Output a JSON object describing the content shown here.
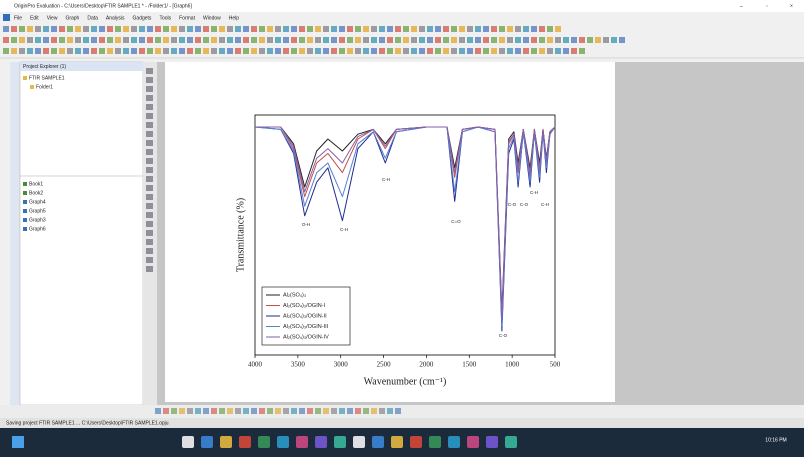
{
  "window": {
    "title": "OriginPro Evaluation - C:\\Users\\Desktop\\FTIR SAMPLE1 * - /Folder1/ - [Graph6]",
    "menu": [
      "File",
      "Edit",
      "View",
      "Graph",
      "Data",
      "Analysis",
      "Gadgets",
      "Tools",
      "Format",
      "Window",
      "Help"
    ]
  },
  "project_explorer": {
    "title": "Project Explorer (1)",
    "folders": [
      "FTIR SAMPLE1",
      "Folder1"
    ],
    "items": [
      "Book1",
      "Book2",
      "Graph4",
      "Graph5",
      "Graph3",
      "Graph6"
    ]
  },
  "graph": {
    "type": "line",
    "x_label": "Wavenumber (cm⁻¹)",
    "y_label": "Transmittance (%)",
    "xlim": [
      4000,
      500
    ],
    "ylim": [
      0,
      100
    ],
    "xticks": [
      4000,
      3500,
      3000,
      2500,
      2000,
      1500,
      1000,
      500
    ],
    "x": [
      4000,
      3700,
      3550,
      3420,
      3280,
      3150,
      2980,
      2800,
      2620,
      2480,
      2350,
      2000,
      1760,
      1670,
      1580,
      1400,
      1200,
      1120,
      1040,
      980,
      930,
      870,
      790,
      740,
      680,
      640,
      600,
      560,
      500
    ],
    "series": [
      {
        "name": "Al₂(SO₄)₃",
        "color": "#222222",
        "values": [
          95,
          95,
          88,
          70,
          85,
          90,
          85,
          92,
          94,
          88,
          94,
          95,
          95,
          78,
          94,
          95,
          94,
          18,
          90,
          93,
          80,
          94,
          78,
          94,
          80,
          94,
          82,
          93,
          95
        ]
      },
      {
        "name": "Al₂(SO₄)₃/OGIN-I",
        "color": "#c0504d",
        "values": [
          95,
          95,
          86,
          66,
          80,
          84,
          76,
          90,
          94,
          86,
          94,
          95,
          95,
          74,
          94,
          95,
          94,
          15,
          88,
          92,
          76,
          94,
          74,
          94,
          76,
          94,
          80,
          93,
          95
        ]
      },
      {
        "name": "Al₂(SO₄)₃/OGIN-II",
        "color": "#1f2d8f",
        "values": [
          95,
          94,
          84,
          58,
          72,
          78,
          56,
          86,
          93,
          80,
          93,
          95,
          95,
          64,
          93,
          95,
          93,
          10,
          84,
          90,
          70,
          93,
          70,
          93,
          72,
          93,
          76,
          92,
          95
        ]
      },
      {
        "name": "Al₂(SO₄)₃/OGIN-III",
        "color": "#5b7fd6",
        "values": [
          95,
          94,
          85,
          62,
          76,
          80,
          66,
          88,
          93,
          82,
          93,
          95,
          95,
          68,
          93,
          95,
          93,
          12,
          86,
          91,
          72,
          93,
          72,
          93,
          74,
          93,
          78,
          92,
          95
        ]
      },
      {
        "name": "Al₂(SO₄)₃/OGIN-IV",
        "color": "#8a5fa8",
        "values": [
          95,
          95,
          87,
          68,
          82,
          86,
          80,
          91,
          94,
          87,
          94,
          95,
          95,
          76,
          94,
          95,
          94,
          16,
          89,
          92,
          78,
          94,
          76,
          94,
          78,
          94,
          81,
          93,
          95
        ]
      }
    ],
    "annotations": [
      "O-H",
      "C-H",
      "C-H",
      "C=O",
      "C-O",
      "C-O",
      "C-O",
      "C-H",
      "C-H"
    ]
  },
  "status_bar": {
    "text": "Saving project FTIR SAMPLE1 ... C:\\Users\\Desktop\\FTIR SAMPLE1.opju"
  },
  "taskbar": {
    "time": "10:16 PM"
  }
}
